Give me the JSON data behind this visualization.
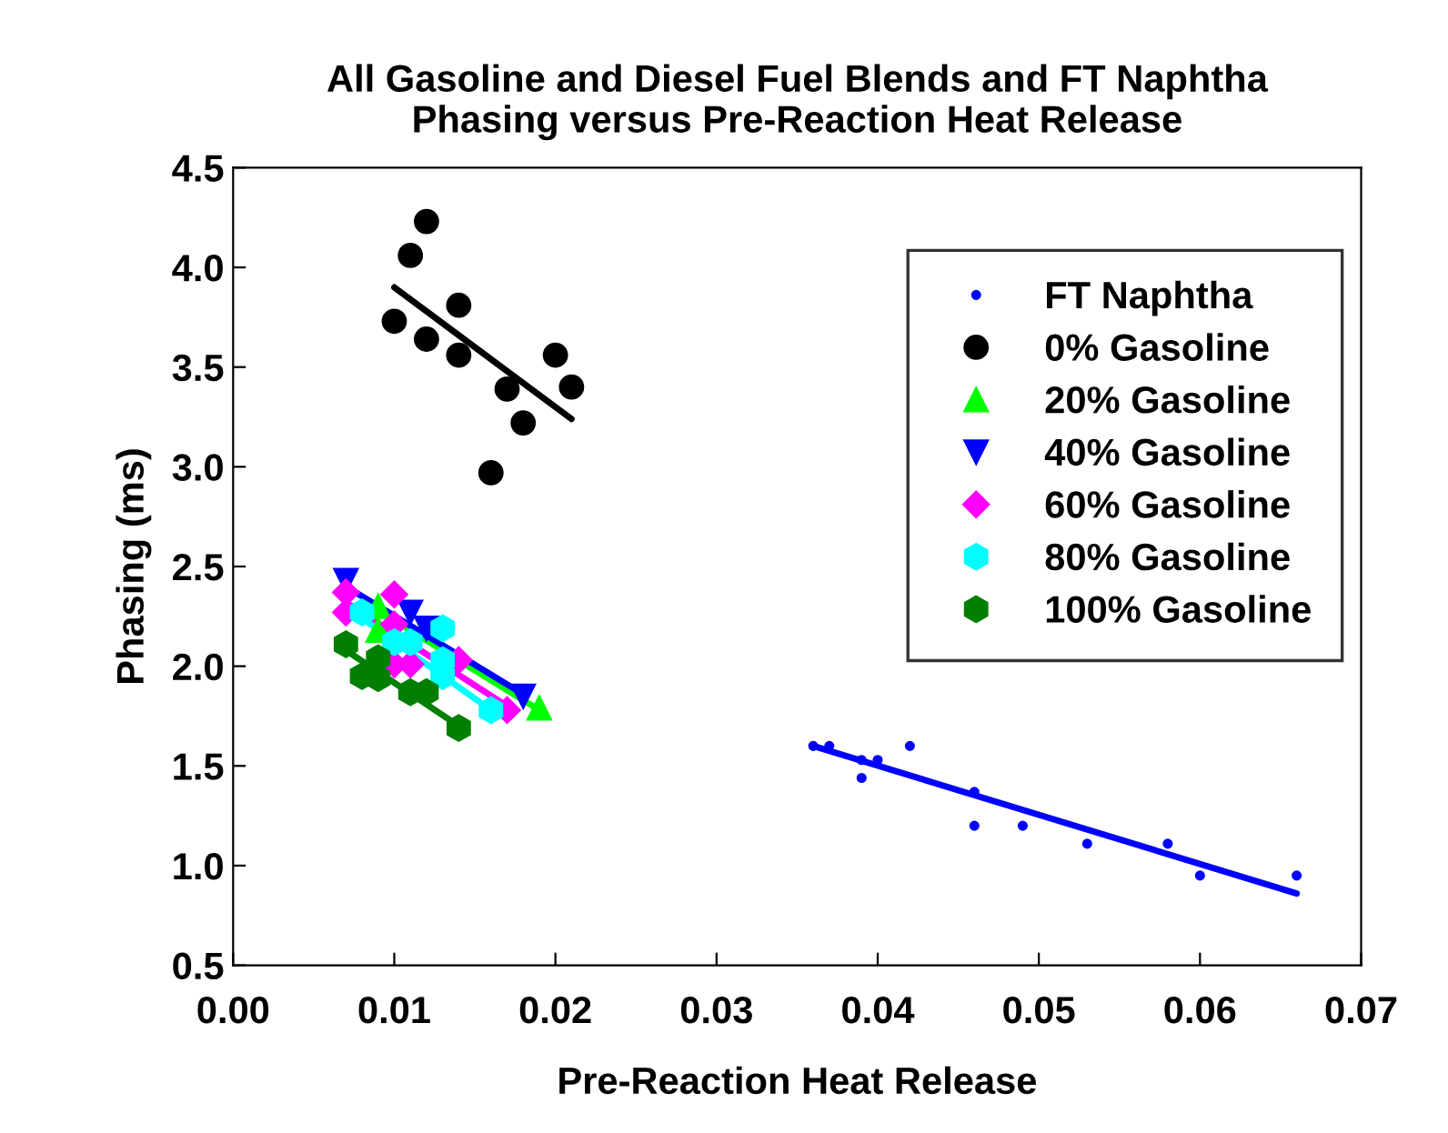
{
  "chart_data": {
    "type": "scatter",
    "title": "All Gasoline and Diesel Fuel Blends and FT Naphtha\nPhasing versus Pre-Reaction Heat Release",
    "xlabel": "Pre-Reaction Heat Release",
    "ylabel": "Phasing (ms)",
    "xlim": [
      0,
      0.07
    ],
    "ylim": [
      0.5,
      4.5
    ],
    "xticks": [
      {
        "value": 0,
        "label": "0.00"
      },
      {
        "value": 0.01,
        "label": "0.01"
      },
      {
        "value": 0.02,
        "label": "0.02"
      },
      {
        "value": 0.03,
        "label": "0.03"
      },
      {
        "value": 0.04,
        "label": "0.04"
      },
      {
        "value": 0.05,
        "label": "0.05"
      },
      {
        "value": 0.06,
        "label": "0.06"
      },
      {
        "value": 0.07,
        "label": "0.07"
      }
    ],
    "yticks": [
      0.5,
      {
        "value": 1,
        "label": "1.0"
      },
      1.5,
      {
        "value": 2,
        "label": "2.0"
      },
      2.5,
      {
        "value": 3,
        "label": "3.0"
      },
      3.5,
      {
        "value": 4,
        "label": "4.0"
      },
      4.5
    ],
    "grid": false,
    "legend": "top right",
    "series": [
      {
        "name": "FT Naphtha",
        "color": "#0000ff",
        "marker": "point",
        "x": [
          0.036,
          0.037,
          0.039,
          0.04,
          0.039,
          0.042,
          0.046,
          0.046,
          0.049,
          0.053,
          0.058,
          0.06,
          0.066
        ],
        "values": [
          1.6,
          1.6,
          1.53,
          1.53,
          1.44,
          1.6,
          1.37,
          1.2,
          1.2,
          1.11,
          1.11,
          0.95,
          0.95
        ]
      },
      {
        "name": "0% Gasoline",
        "color": "#000000",
        "marker": "circle",
        "x": [
          0.012,
          0.011,
          0.014,
          0.01,
          0.012,
          0.014,
          0.02,
          0.017,
          0.021,
          0.018,
          0.016
        ],
        "values": [
          4.23,
          4.06,
          3.81,
          3.73,
          3.64,
          3.56,
          3.56,
          3.39,
          3.4,
          3.22,
          2.97
        ]
      },
      {
        "name": "20% Gasoline",
        "color": "#00ff00",
        "marker": "triangle",
        "x": [
          0.009,
          0.009,
          0.019
        ],
        "values": [
          2.3,
          2.18,
          1.79
        ]
      },
      {
        "name": "40% Gasoline",
        "color": "#0000ff",
        "marker": "triangle_down",
        "x": [
          0.007,
          0.011,
          0.012,
          0.018
        ],
        "values": [
          2.43,
          2.27,
          2.19,
          1.85
        ]
      },
      {
        "name": "60% Gasoline",
        "color": "#ff00ff",
        "marker": "diamond",
        "x": [
          0.007,
          0.007,
          0.01,
          0.01,
          0.01,
          0.011,
          0.014,
          0.017
        ],
        "values": [
          2.37,
          2.27,
          2.36,
          2.21,
          2.01,
          2.01,
          2.03,
          1.78
        ]
      },
      {
        "name": "80% Gasoline",
        "color": "#00ffff",
        "x": [
          0.008,
          0.01,
          0.011,
          0.013,
          0.013,
          0.013,
          0.016
        ],
        "values": [
          2.27,
          2.12,
          2.12,
          2.19,
          2.03,
          1.95,
          1.78
        ]
      },
      {
        "name": "100% Gasoline",
        "color": "#007f00",
        "x": [
          0.007,
          0.009,
          0.008,
          0.009,
          0.011,
          0.012,
          0.014
        ],
        "values": [
          2.11,
          2.04,
          1.95,
          1.94,
          1.87,
          1.87,
          1.69
        ]
      },
      {
        "type": "line",
        "color": "#0000ff",
        "x": [
          0.036,
          0.066
        ],
        "values": [
          1.6,
          0.86
        ]
      },
      {
        "type": "line",
        "color": "#000000",
        "x": [
          0.01,
          0.021
        ],
        "values": [
          3.9,
          3.24
        ]
      },
      {
        "type": "line",
        "color": "#00ff00",
        "x": [
          0.009,
          0.019
        ],
        "values": [
          2.28,
          1.78
        ]
      },
      {
        "type": "line",
        "color": "#0000ff",
        "x": [
          0.007,
          0.018
        ],
        "values": [
          2.4,
          1.86
        ]
      },
      {
        "type": "line",
        "color": "#ff00ff",
        "x": [
          0.007,
          0.017
        ],
        "values": [
          2.32,
          1.8
        ]
      },
      {
        "type": "line",
        "color": "#00ffff",
        "x": [
          0.008,
          0.016
        ],
        "values": [
          2.24,
          1.78
        ]
      },
      {
        "type": "line",
        "color": "#007f00",
        "x": [
          0.007,
          0.014
        ],
        "values": [
          2.08,
          1.7
        ]
      }
    ]
  }
}
